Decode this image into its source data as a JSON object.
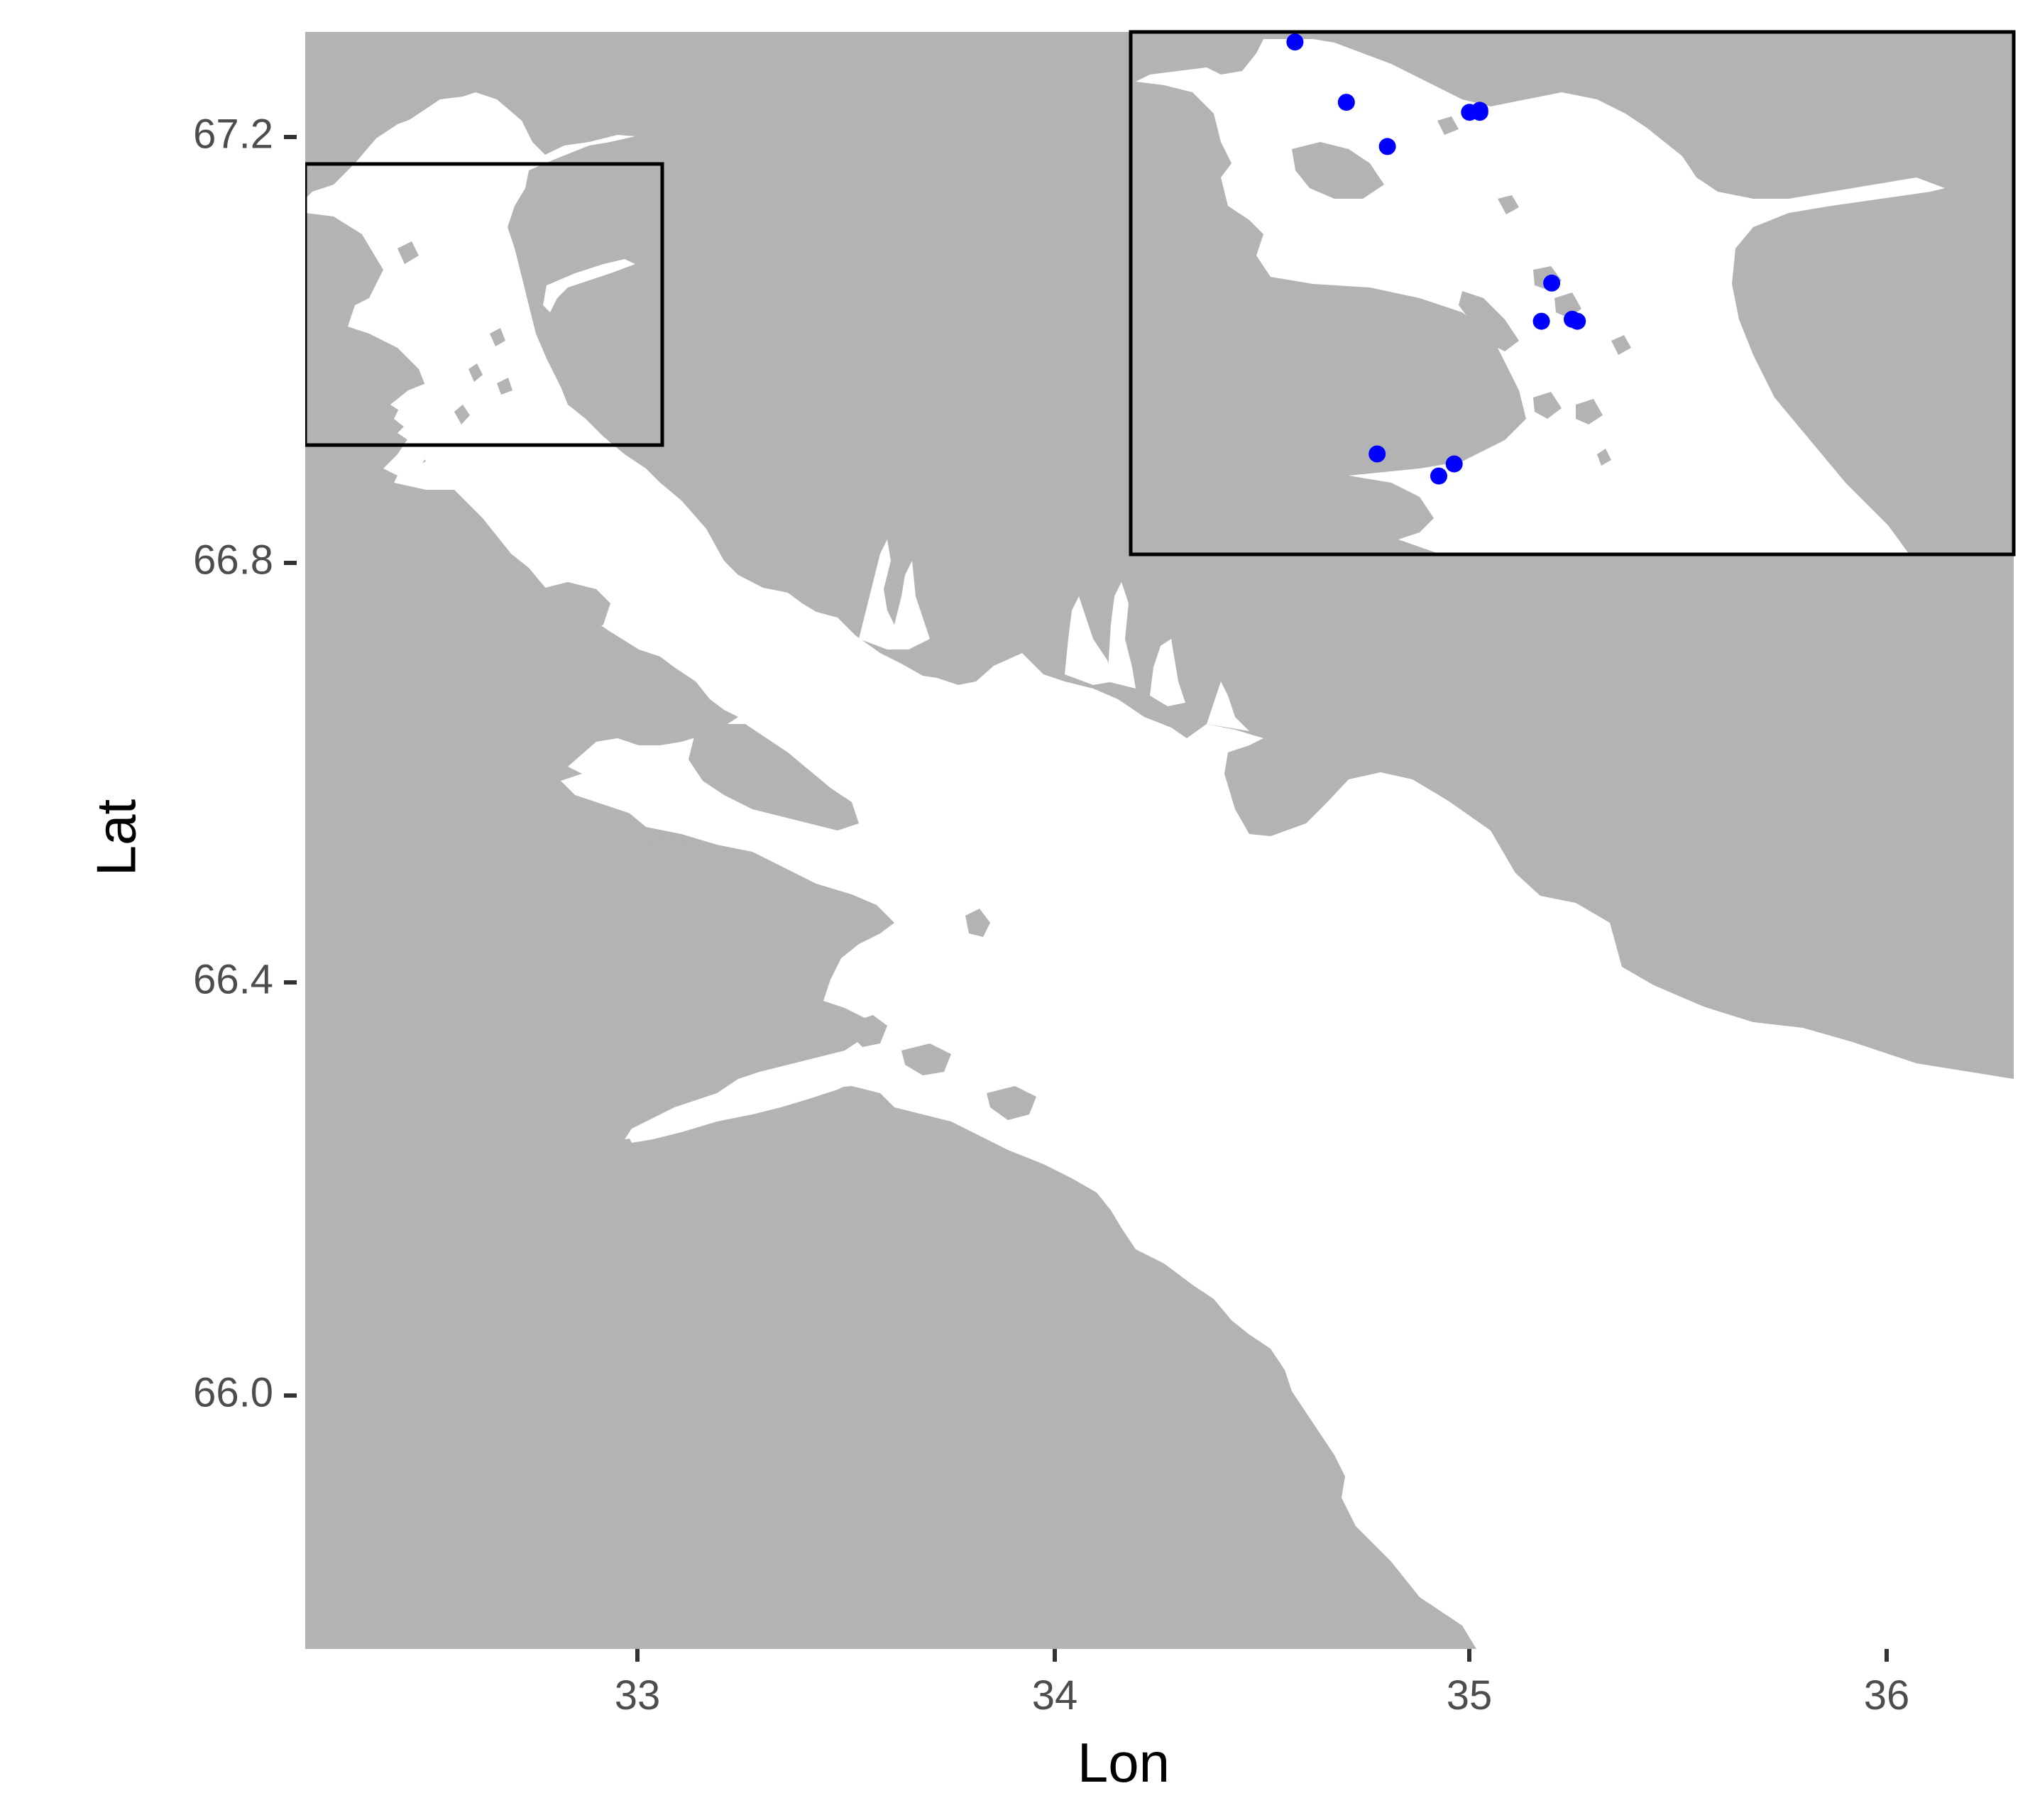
{
  "map": {
    "x_axis_title": "Lon",
    "y_axis_title": "Lat",
    "x_ticks": [
      "33",
      "34",
      "35",
      "36"
    ],
    "y_ticks": [
      "67.2",
      "66.8",
      "66.4",
      "66.0"
    ],
    "land_color": "#b3b3b3",
    "water_color": "#ffffff",
    "point_color": "#0000ff",
    "frame_color": "#000000",
    "extent": {
      "lon": [
        32.2,
        36.3
      ],
      "lat": [
        65.75,
        67.3
      ]
    },
    "inset_region": {
      "lon": [
        32.2,
        33.06
      ],
      "lat": [
        66.91,
        67.17
      ]
    }
  },
  "chart_data": {
    "type": "scatter",
    "title": "",
    "xlabel": "Lon",
    "ylabel": "Lat",
    "xlim": [
      32.2,
      36.3
    ],
    "ylim": [
      65.75,
      67.3
    ],
    "x_ticks": [
      33,
      34,
      35,
      36
    ],
    "y_ticks": [
      66.0,
      66.4,
      66.8,
      67.2
    ],
    "grid": false,
    "legend": "none",
    "series": [
      {
        "x": [
          32.36,
          32.41,
          32.45,
          32.53,
          32.54,
          32.54,
          32.61,
          32.63,
          32.635,
          32.6,
          32.44,
          32.5,
          32.515
        ],
        "y": [
          67.165,
          67.135,
          67.113,
          67.13,
          67.13,
          67.131,
          67.045,
          67.027,
          67.026,
          67.026,
          66.96,
          66.949,
          66.955
        ]
      }
    ]
  }
}
